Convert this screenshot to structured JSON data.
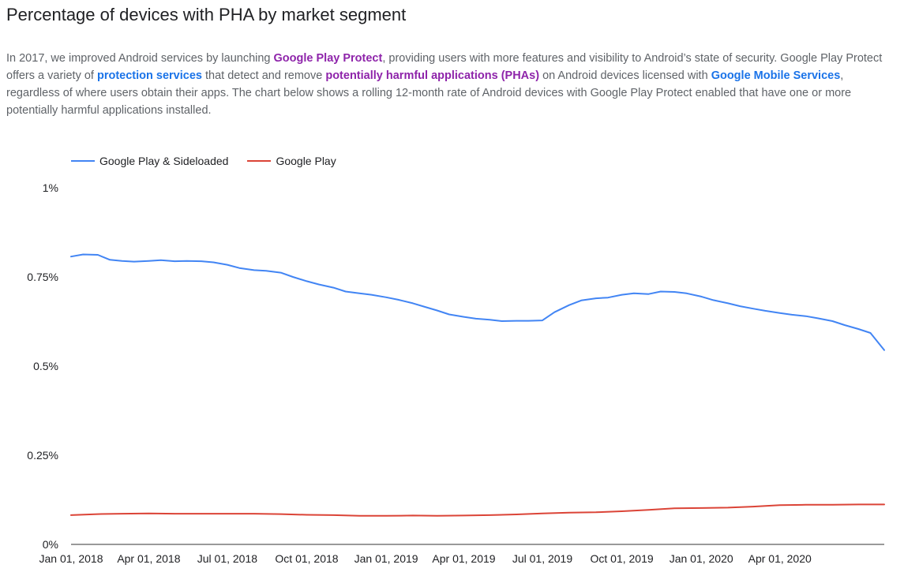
{
  "title": "Percentage of devices with PHA by market segment",
  "intro": {
    "t1": "In 2017, we improved Android services by launching ",
    "link1": "Google Play Protect",
    "t2": ", providing users with more features and visibility to Android’s state of security. Google Play Protect offers a variety of ",
    "link2": "protection services",
    "t3": " that detect and remove ",
    "link3": "potentially harmful applications (PHAs)",
    "t4": " on Android devices licensed with ",
    "link4": "Google Mobile Services",
    "t5": ", regardless of where users obtain their apps. The chart below shows a rolling 12-month rate of Android devices with Google Play Protect enabled that have one or more potentially harmful applications installed."
  },
  "colors": {
    "series_blue": "#4285f4",
    "series_red": "#db4437",
    "link_purple": "#8e24aa",
    "link_blue": "#1a73e8",
    "axis": "#333333",
    "grid": "#e0e0e0"
  },
  "chart_data": {
    "type": "line",
    "title": "Percentage of devices with PHA by market segment",
    "xlabel": "",
    "ylabel": "",
    "ylim": [
      0,
      1
    ],
    "xlim": [
      "2018-01-01",
      "2020-07-31"
    ],
    "grid": false,
    "legend": "top-left",
    "yticks": [
      {
        "value": 0,
        "label": "0%"
      },
      {
        "value": 0.25,
        "label": "0.25%"
      },
      {
        "value": 0.5,
        "label": "0.5%"
      },
      {
        "value": 0.75,
        "label": "0.75%"
      },
      {
        "value": 1,
        "label": "1%"
      }
    ],
    "xticks": [
      {
        "value": "2018-01-01",
        "label": "Jan 01, 2018"
      },
      {
        "value": "2018-04-01",
        "label": "Apr 01, 2018"
      },
      {
        "value": "2018-07-01",
        "label": "Jul 01, 2018"
      },
      {
        "value": "2018-10-01",
        "label": "Oct 01, 2018"
      },
      {
        "value": "2019-01-01",
        "label": "Jan 01, 2019"
      },
      {
        "value": "2019-04-01",
        "label": "Apr 01, 2019"
      },
      {
        "value": "2019-07-01",
        "label": "Jul 01, 2019"
      },
      {
        "value": "2019-10-01",
        "label": "Oct 01, 2019"
      },
      {
        "value": "2020-01-01",
        "label": "Jan 01, 2020"
      },
      {
        "value": "2020-04-01",
        "label": "Apr 01, 2020"
      }
    ],
    "series": [
      {
        "name": "Google Play & Sideloaded",
        "color": "#4285f4",
        "x": [
          "2018-01-01",
          "2018-01-15",
          "2018-02-01",
          "2018-02-15",
          "2018-03-01",
          "2018-03-15",
          "2018-04-01",
          "2018-04-15",
          "2018-05-01",
          "2018-05-15",
          "2018-06-01",
          "2018-06-15",
          "2018-07-01",
          "2018-07-15",
          "2018-08-01",
          "2018-08-15",
          "2018-09-01",
          "2018-09-15",
          "2018-10-01",
          "2018-10-15",
          "2018-11-01",
          "2018-11-15",
          "2018-12-01",
          "2018-12-15",
          "2019-01-01",
          "2019-01-15",
          "2019-02-01",
          "2019-02-15",
          "2019-03-01",
          "2019-03-15",
          "2019-04-01",
          "2019-04-15",
          "2019-05-01",
          "2019-05-15",
          "2019-06-01",
          "2019-06-15",
          "2019-07-01",
          "2019-07-15",
          "2019-08-01",
          "2019-08-15",
          "2019-09-01",
          "2019-09-15",
          "2019-10-01",
          "2019-10-15",
          "2019-11-01",
          "2019-11-15",
          "2019-12-01",
          "2019-12-15",
          "2020-01-01",
          "2020-01-15",
          "2020-02-01",
          "2020-02-15",
          "2020-03-01",
          "2020-03-15",
          "2020-04-01",
          "2020-04-15",
          "2020-05-01",
          "2020-05-15",
          "2020-06-01",
          "2020-06-15",
          "2020-07-01",
          "2020-07-15",
          "2020-07-31"
        ],
        "values": [
          0.807,
          0.813,
          0.812,
          0.798,
          0.795,
          0.793,
          0.795,
          0.797,
          0.794,
          0.795,
          0.794,
          0.791,
          0.784,
          0.775,
          0.769,
          0.767,
          0.762,
          0.75,
          0.738,
          0.729,
          0.72,
          0.709,
          0.704,
          0.7,
          0.693,
          0.686,
          0.676,
          0.666,
          0.656,
          0.645,
          0.638,
          0.633,
          0.63,
          0.626,
          0.627,
          0.627,
          0.628,
          0.651,
          0.671,
          0.684,
          0.69,
          0.692,
          0.7,
          0.704,
          0.702,
          0.709,
          0.708,
          0.704,
          0.695,
          0.685,
          0.676,
          0.668,
          0.661,
          0.655,
          0.649,
          0.644,
          0.64,
          0.634,
          0.626,
          0.615,
          0.604,
          0.593,
          0.545
        ]
      },
      {
        "name": "Google Play",
        "color": "#db4437",
        "x": [
          "2018-01-01",
          "2018-02-01",
          "2018-03-01",
          "2018-04-01",
          "2018-05-01",
          "2018-06-01",
          "2018-07-01",
          "2018-08-01",
          "2018-09-01",
          "2018-10-01",
          "2018-11-01",
          "2018-12-01",
          "2019-01-01",
          "2019-02-01",
          "2019-03-01",
          "2019-04-01",
          "2019-05-01",
          "2019-06-01",
          "2019-07-01",
          "2019-08-01",
          "2019-09-01",
          "2019-10-01",
          "2019-11-01",
          "2019-12-01",
          "2020-01-01",
          "2020-02-01",
          "2020-03-01",
          "2020-04-01",
          "2020-05-01",
          "2020-06-01",
          "2020-07-01",
          "2020-07-31"
        ],
        "values": [
          0.082,
          0.085,
          0.086,
          0.087,
          0.086,
          0.086,
          0.086,
          0.086,
          0.085,
          0.083,
          0.082,
          0.08,
          0.08,
          0.081,
          0.08,
          0.081,
          0.082,
          0.084,
          0.087,
          0.089,
          0.09,
          0.093,
          0.097,
          0.101,
          0.102,
          0.103,
          0.106,
          0.11,
          0.111,
          0.111,
          0.112,
          0.112
        ]
      }
    ]
  }
}
